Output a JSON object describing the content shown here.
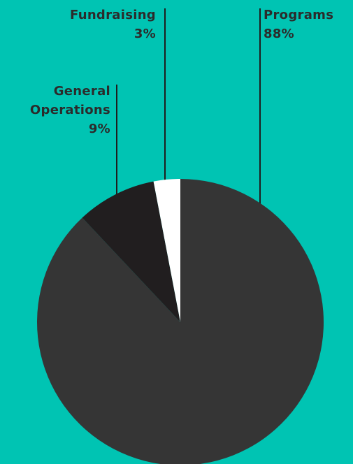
{
  "colors": {
    "background": "#00C4B3",
    "text": "#2B2B2B",
    "leader_line": "#1E1E1E"
  },
  "chart_data": {
    "type": "pie",
    "title": "",
    "slices": [
      {
        "label": "Programs",
        "label_lines": [
          "Programs"
        ],
        "value": 88,
        "display": "88%",
        "color": "#353535"
      },
      {
        "label": "General Operations",
        "label_lines": [
          "General",
          "Operations"
        ],
        "value": 9,
        "display": "9%",
        "color": "#211E1F"
      },
      {
        "label": "Fundraising",
        "label_lines": [
          "Fundraising"
        ],
        "value": 3,
        "display": "3%",
        "color": "#FFFFFF"
      }
    ],
    "start": "12 o'clock",
    "direction": "clockwise",
    "legend": "none",
    "labels": "callouts with leader lines above the pie"
  }
}
